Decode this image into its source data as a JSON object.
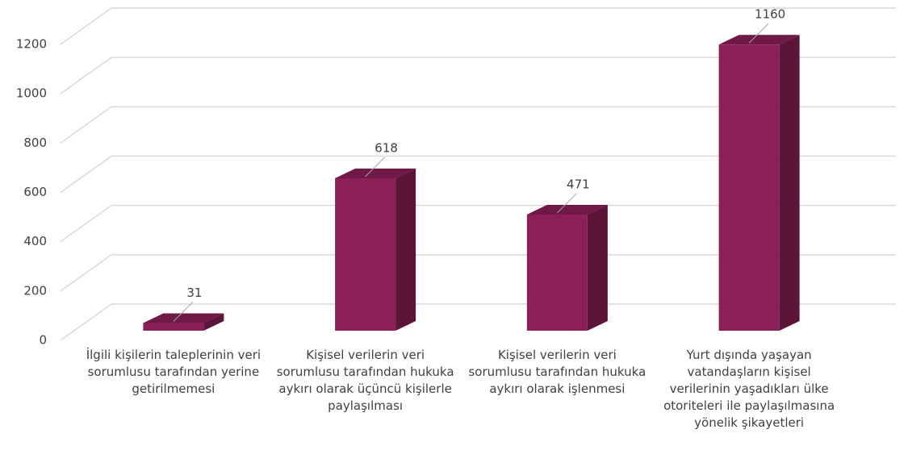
{
  "chart_data": {
    "type": "bar3d",
    "categories": [
      "İlgili kişilerin taleplerinin veri sorumlusu tarafından yerine getirilmemesi",
      "Kişisel verilerin veri sorumlusu tarafından hukuka aykırı olarak üçüncü kişilerle paylaşılması",
      "Kişisel verilerin veri sorumlusu tarafından hukuka aykırı olarak işlenmesi",
      "Yurt dışında yaşayan vatandaşların kişisel verilerinin yaşadıkları ülke otoriteleri ile paylaşılmasına yönelik şikayetleri"
    ],
    "values": [
      31,
      618,
      471,
      1160
    ],
    "color": "#8b1f57",
    "ylim": [
      0,
      1200
    ],
    "yticks": [
      0,
      200,
      400,
      600,
      800,
      1000,
      1200
    ],
    "grid": true
  }
}
